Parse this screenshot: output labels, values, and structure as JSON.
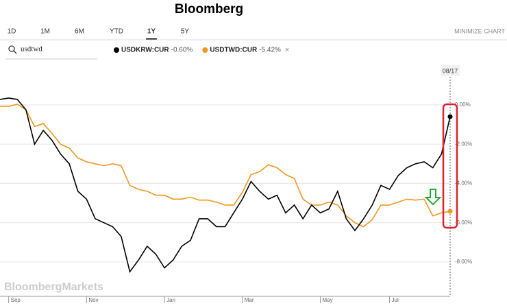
{
  "header": {
    "title": "Bloomberg",
    "tabs": [
      "1D",
      "1M",
      "6M",
      "YTD",
      "1Y",
      "5Y"
    ],
    "active_tab": "1Y",
    "minimize": "MINIMIZE CHART",
    "search": "usdtwd"
  },
  "chart_data": {
    "type": "line",
    "watermark": "BloombergMarkets",
    "cursor_date": "08/17",
    "categories": [
      null,
      "Sep",
      null,
      null,
      null,
      null,
      null,
      null,
      null,
      null,
      "Nov",
      null,
      null,
      null,
      null,
      null,
      null,
      null,
      null,
      "Jan",
      null,
      null,
      null,
      null,
      null,
      null,
      null,
      null,
      "Mar",
      null,
      null,
      null,
      null,
      null,
      null,
      null,
      null,
      "May",
      null,
      null,
      null,
      null,
      null,
      null,
      null,
      "Jul",
      null,
      null,
      null,
      null,
      null,
      null,
      null
    ],
    "ylim": [
      -9.75,
      0.8
    ],
    "yticks": [
      {
        "value": 0,
        "label": "0.00%"
      },
      {
        "value": -2,
        "label": "-2.00%"
      },
      {
        "value": -4,
        "label": "-4.00%"
      },
      {
        "value": -6,
        "label": "-6.00%"
      },
      {
        "value": -8,
        "label": "-8.00%"
      }
    ],
    "grid": true,
    "series": [
      {
        "name": "USDKRW:CUR",
        "change": "-0.60%",
        "color": "#000000",
        "values": [
          0.28,
          0.35,
          0.28,
          -0.25,
          -2.0,
          -1.3,
          -1.8,
          -2.5,
          -3.0,
          -4.4,
          -4.8,
          -5.8,
          -6.0,
          -6.2,
          -6.7,
          -8.5,
          -7.9,
          -7.2,
          -7.6,
          -8.3,
          -7.9,
          -7.2,
          -6.9,
          -5.8,
          -5.8,
          -6.2,
          -6.2,
          -5.5,
          -4.8,
          -3.9,
          -4.4,
          -4.8,
          -4.6,
          -5.5,
          -5.1,
          -5.8,
          -5.1,
          -5.5,
          -5.3,
          -4.4,
          -5.8,
          -6.4,
          -5.8,
          -5.1,
          -4.1,
          -4.3,
          -3.6,
          -3.2,
          -3.0,
          -2.9,
          -3.2,
          -2.5,
          -0.6
        ]
      },
      {
        "name": "USDTWD:CUR",
        "change": "-5.42%",
        "color": "#f0961e",
        "values": [
          -0.07,
          -0.07,
          0.03,
          -0.25,
          -1.1,
          -0.95,
          -1.45,
          -2.0,
          -2.2,
          -2.7,
          -2.9,
          -3.0,
          -3.1,
          -3.0,
          -3.1,
          -4.1,
          -4.3,
          -4.4,
          -4.6,
          -4.6,
          -4.8,
          -4.8,
          -4.7,
          -4.85,
          -4.85,
          -4.95,
          -5.1,
          -5.1,
          -4.45,
          -3.55,
          -3.4,
          -3.05,
          -3.2,
          -3.55,
          -3.75,
          -4.8,
          -5.1,
          -5.1,
          -4.95,
          -5.1,
          -5.65,
          -6.0,
          -6.2,
          -5.85,
          -5.1,
          -5.1,
          -4.95,
          -4.8,
          -4.85,
          -4.8,
          -5.65,
          -5.5,
          -5.42
        ]
      }
    ]
  }
}
